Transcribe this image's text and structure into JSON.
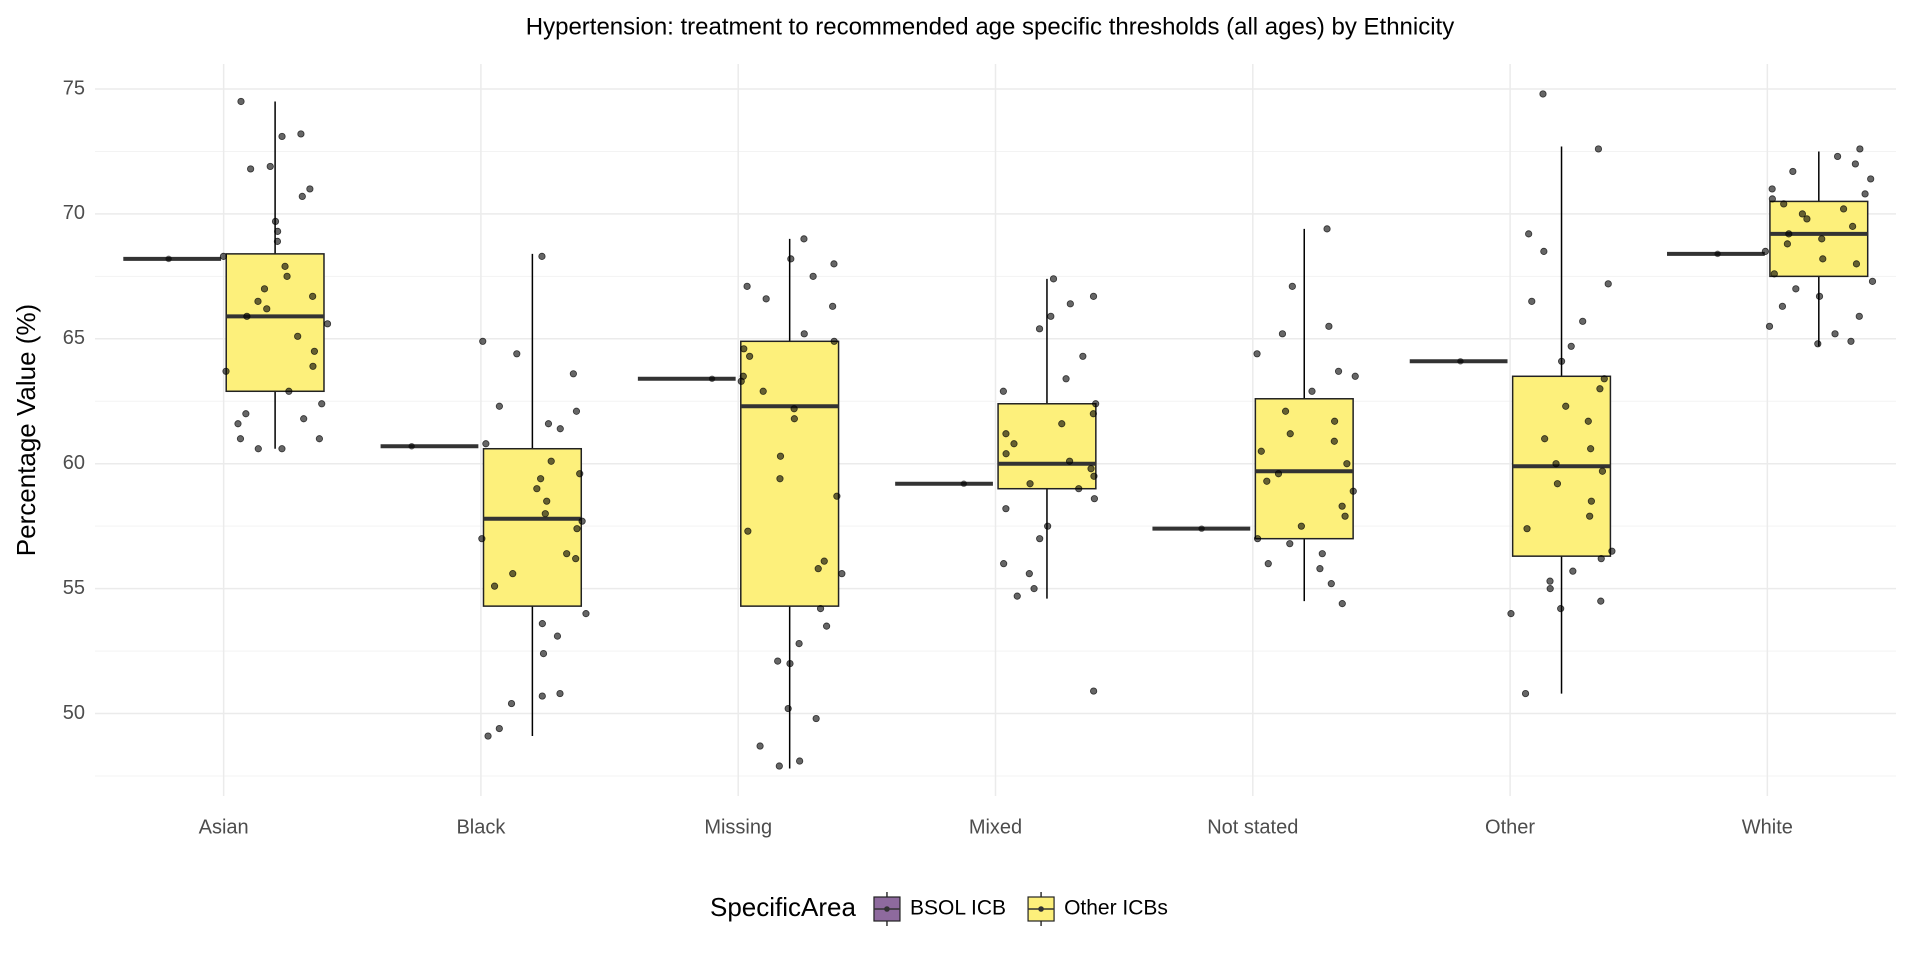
{
  "chart_data": {
    "type": "box",
    "title": "Hypertension: treatment to recommended age specific thresholds (all ages) by Ethnicity",
    "y_label": "Percentage Value (%)",
    "legend_title": "SpecificArea",
    "categories": [
      "Asian",
      "Black",
      "Missing",
      "Mixed",
      "Not stated",
      "Other",
      "White"
    ],
    "ylim": [
      46.7,
      76
    ],
    "yticks": [
      50,
      55,
      60,
      65,
      70,
      75
    ],
    "yminorticks": [
      47.5,
      52.5,
      57.5,
      62.5,
      67.5,
      72.5
    ],
    "grid": true,
    "legend": "bottom",
    "series": [
      {
        "name": "BSOL ICB",
        "color": "#8e6a9e",
        "values": [
          68.2,
          60.7,
          63.4,
          59.2,
          57.4,
          64.1,
          68.4
        ]
      },
      {
        "name": "Other ICBs",
        "color": "#fdf07b",
        "low": [
          60.6,
          49.1,
          47.8,
          54.6,
          54.5,
          50.8,
          64.7
        ],
        "q1": [
          62.9,
          54.3,
          54.3,
          59.0,
          57.0,
          56.3,
          67.5
        ],
        "median": [
          65.9,
          57.8,
          62.3,
          60.0,
          59.7,
          59.9,
          69.2
        ],
        "q3": [
          68.4,
          60.6,
          64.9,
          62.4,
          62.6,
          63.5,
          70.5
        ],
        "high": [
          74.5,
          68.4,
          69.0,
          67.4,
          69.4,
          72.7,
          72.5
        ],
        "points": [
          [
            74.5,
            73.2,
            73.1,
            71.9,
            71.8,
            71.0,
            70.7,
            69.7,
            69.3,
            68.9,
            68.3,
            67.9,
            67.5,
            67.0,
            66.7,
            66.5,
            66.2,
            65.9,
            65.6,
            65.1,
            64.5,
            63.9,
            63.7,
            62.9,
            62.4,
            62.0,
            61.8,
            61.6,
            61.0,
            61.0,
            60.6,
            60.6
          ],
          [
            68.3,
            64.9,
            64.4,
            63.6,
            62.3,
            62.1,
            61.6,
            61.4,
            60.8,
            60.1,
            59.6,
            59.4,
            59.0,
            58.5,
            58.0,
            57.7,
            57.4,
            57.0,
            56.4,
            56.2,
            55.6,
            55.1,
            54.0,
            53.6,
            53.1,
            52.4,
            50.8,
            50.7,
            50.4,
            49.4,
            49.1
          ],
          [
            69.0,
            68.2,
            68.0,
            67.5,
            67.1,
            66.6,
            66.3,
            65.2,
            64.9,
            64.6,
            64.3,
            63.5,
            63.3,
            62.9,
            62.2,
            61.8,
            60.3,
            59.4,
            58.7,
            57.3,
            56.1,
            55.8,
            55.6,
            54.2,
            53.5,
            52.8,
            52.1,
            52.0,
            50.2,
            49.8,
            48.7,
            48.1,
            47.9
          ],
          [
            67.4,
            66.7,
            66.4,
            65.9,
            65.4,
            64.3,
            63.4,
            62.9,
            62.4,
            62.0,
            61.6,
            61.2,
            60.8,
            60.4,
            60.1,
            59.8,
            59.5,
            59.2,
            59.0,
            58.6,
            58.2,
            57.5,
            57.0,
            56.0,
            55.6,
            55.0,
            54.7,
            50.9
          ],
          [
            69.4,
            67.1,
            65.5,
            65.2,
            64.4,
            63.7,
            63.5,
            62.9,
            62.1,
            61.7,
            61.2,
            60.9,
            60.5,
            60.0,
            59.6,
            59.3,
            58.9,
            58.3,
            57.9,
            57.5,
            57.0,
            56.8,
            56.4,
            56.0,
            55.8,
            55.2,
            54.4
          ],
          [
            74.8,
            72.6,
            69.2,
            68.5,
            67.2,
            66.5,
            65.7,
            64.7,
            64.1,
            63.4,
            63.0,
            62.3,
            61.7,
            61.0,
            60.6,
            60.0,
            59.7,
            59.2,
            58.5,
            57.9,
            57.4,
            56.5,
            56.2,
            55.7,
            55.3,
            55.0,
            54.5,
            54.2,
            54.0,
            50.8
          ],
          [
            72.6,
            72.3,
            72.0,
            71.7,
            71.4,
            71.0,
            70.8,
            70.6,
            70.4,
            70.2,
            70.0,
            69.8,
            69.5,
            69.2,
            69.0,
            68.8,
            68.5,
            68.2,
            68.0,
            67.6,
            67.3,
            67.0,
            66.7,
            66.3,
            65.9,
            65.5,
            65.2,
            64.9,
            64.8
          ]
        ]
      }
    ]
  }
}
